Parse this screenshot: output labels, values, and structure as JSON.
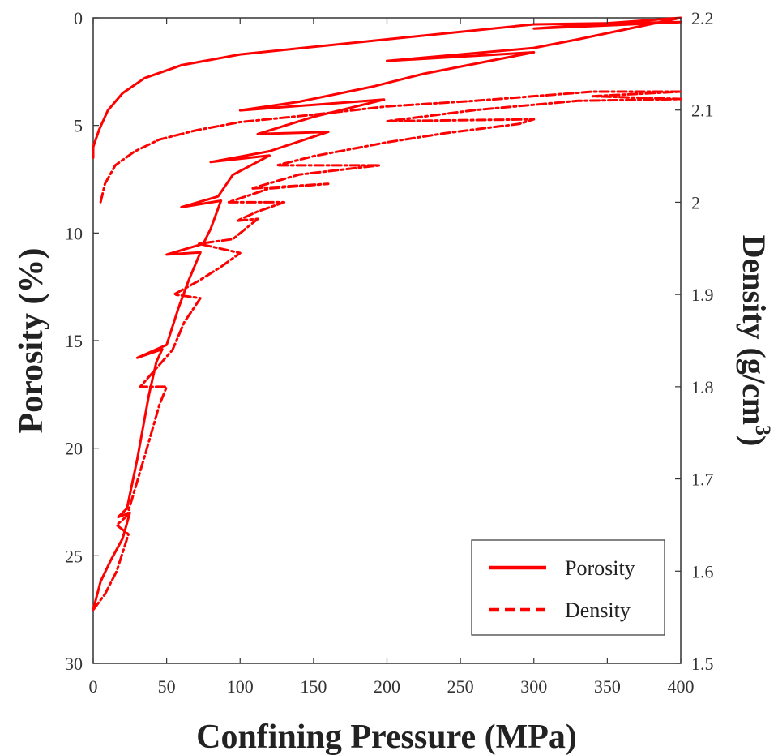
{
  "chart_data": {
    "type": "line",
    "xlabel": "Confining Pressure (MPa)",
    "ylabel_left": "Porosity (%)",
    "ylabel_right_main": "Density (g/cm",
    "ylabel_right_sup": "3",
    "ylabel_right_end": ")",
    "xlim": [
      0,
      400
    ],
    "ylim_left": [
      0,
      30
    ],
    "ylim_left_reversed": true,
    "ylim_right": [
      1.5,
      2.2
    ],
    "x_ticks": [
      "0",
      "50",
      "100",
      "150",
      "200",
      "250",
      "300",
      "350",
      "400"
    ],
    "y_left_ticks": [
      "0",
      "5",
      "10",
      "15",
      "20",
      "25",
      "30"
    ],
    "y_right_ticks": [
      "2.2",
      "2.1",
      "2",
      "1.9",
      "1.8",
      "1.7",
      "1.6",
      "1.5"
    ],
    "grid": false,
    "legend_position": "bottom-right",
    "series_color": "#ff0000",
    "series": [
      {
        "name": "Porosity",
        "axis": "left",
        "style": "solid",
        "points": [
          [
            0,
            27.5
          ],
          [
            5,
            26.2
          ],
          [
            12,
            25.2
          ],
          [
            20,
            24.2
          ],
          [
            25,
            23.0
          ],
          [
            17,
            23.2
          ],
          [
            23,
            22.8
          ],
          [
            30,
            20.5
          ],
          [
            38,
            17.5
          ],
          [
            43,
            16.0
          ],
          [
            47,
            15.4
          ],
          [
            30,
            15.8
          ],
          [
            50,
            15.2
          ],
          [
            58,
            13.5
          ],
          [
            65,
            12.2
          ],
          [
            73,
            10.9
          ],
          [
            50,
            11.0
          ],
          [
            75,
            10.5
          ],
          [
            80,
            9.8
          ],
          [
            87,
            8.5
          ],
          [
            60,
            8.8
          ],
          [
            85,
            8.3
          ],
          [
            95,
            7.3
          ],
          [
            120,
            6.4
          ],
          [
            80,
            6.7
          ],
          [
            120,
            6.2
          ],
          [
            160,
            5.3
          ],
          [
            112,
            5.4
          ],
          [
            150,
            4.6
          ],
          [
            198,
            3.8
          ],
          [
            100,
            4.3
          ],
          [
            140,
            3.9
          ],
          [
            190,
            3.2
          ],
          [
            225,
            2.6
          ],
          [
            300,
            1.6
          ],
          [
            200,
            2.0
          ],
          [
            300,
            1.4
          ],
          [
            330,
            1.0
          ],
          [
            400,
            0.0
          ],
          [
            300,
            0.5
          ],
          [
            400,
            0.2
          ],
          [
            300,
            0.3
          ],
          [
            200,
            1.0
          ],
          [
            100,
            1.7
          ],
          [
            60,
            2.2
          ],
          [
            35,
            2.8
          ],
          [
            20,
            3.5
          ],
          [
            10,
            4.3
          ],
          [
            4,
            5.2
          ],
          [
            0,
            6.0
          ],
          [
            0,
            6.5
          ]
        ]
      },
      {
        "name": "Density",
        "axis": "right",
        "style": "dashed",
        "points": [
          [
            0,
            1.558
          ],
          [
            8,
            1.575
          ],
          [
            16,
            1.6
          ],
          [
            24,
            1.64
          ],
          [
            16,
            1.65
          ],
          [
            23,
            1.66
          ],
          [
            36,
            1.73
          ],
          [
            45,
            1.78
          ],
          [
            50,
            1.8
          ],
          [
            32,
            1.8
          ],
          [
            54,
            1.84
          ],
          [
            62,
            1.87
          ],
          [
            73,
            1.896
          ],
          [
            55,
            1.9
          ],
          [
            72,
            1.915
          ],
          [
            87,
            1.93
          ],
          [
            100,
            1.945
          ],
          [
            72,
            1.955
          ],
          [
            95,
            1.96
          ],
          [
            112,
            1.982
          ],
          [
            98,
            1.98
          ],
          [
            112,
            1.99
          ],
          [
            130,
            2.0
          ],
          [
            92,
            2.0
          ],
          [
            120,
            2.015
          ],
          [
            160,
            2.02
          ],
          [
            108,
            2.015
          ],
          [
            140,
            2.03
          ],
          [
            195,
            2.04
          ],
          [
            125,
            2.04
          ],
          [
            150,
            2.05
          ],
          [
            200,
            2.065
          ],
          [
            240,
            2.075
          ],
          [
            290,
            2.085
          ],
          [
            300,
            2.09
          ],
          [
            200,
            2.088
          ],
          [
            260,
            2.1
          ],
          [
            330,
            2.11
          ],
          [
            400,
            2.112
          ],
          [
            340,
            2.115
          ],
          [
            400,
            2.12
          ],
          [
            340,
            2.12
          ],
          [
            260,
            2.11
          ],
          [
            200,
            2.104
          ],
          [
            150,
            2.095
          ],
          [
            100,
            2.087
          ],
          [
            70,
            2.078
          ],
          [
            45,
            2.068
          ],
          [
            28,
            2.055
          ],
          [
            15,
            2.04
          ],
          [
            8,
            2.02
          ],
          [
            5,
            2.0
          ]
        ]
      }
    ]
  }
}
